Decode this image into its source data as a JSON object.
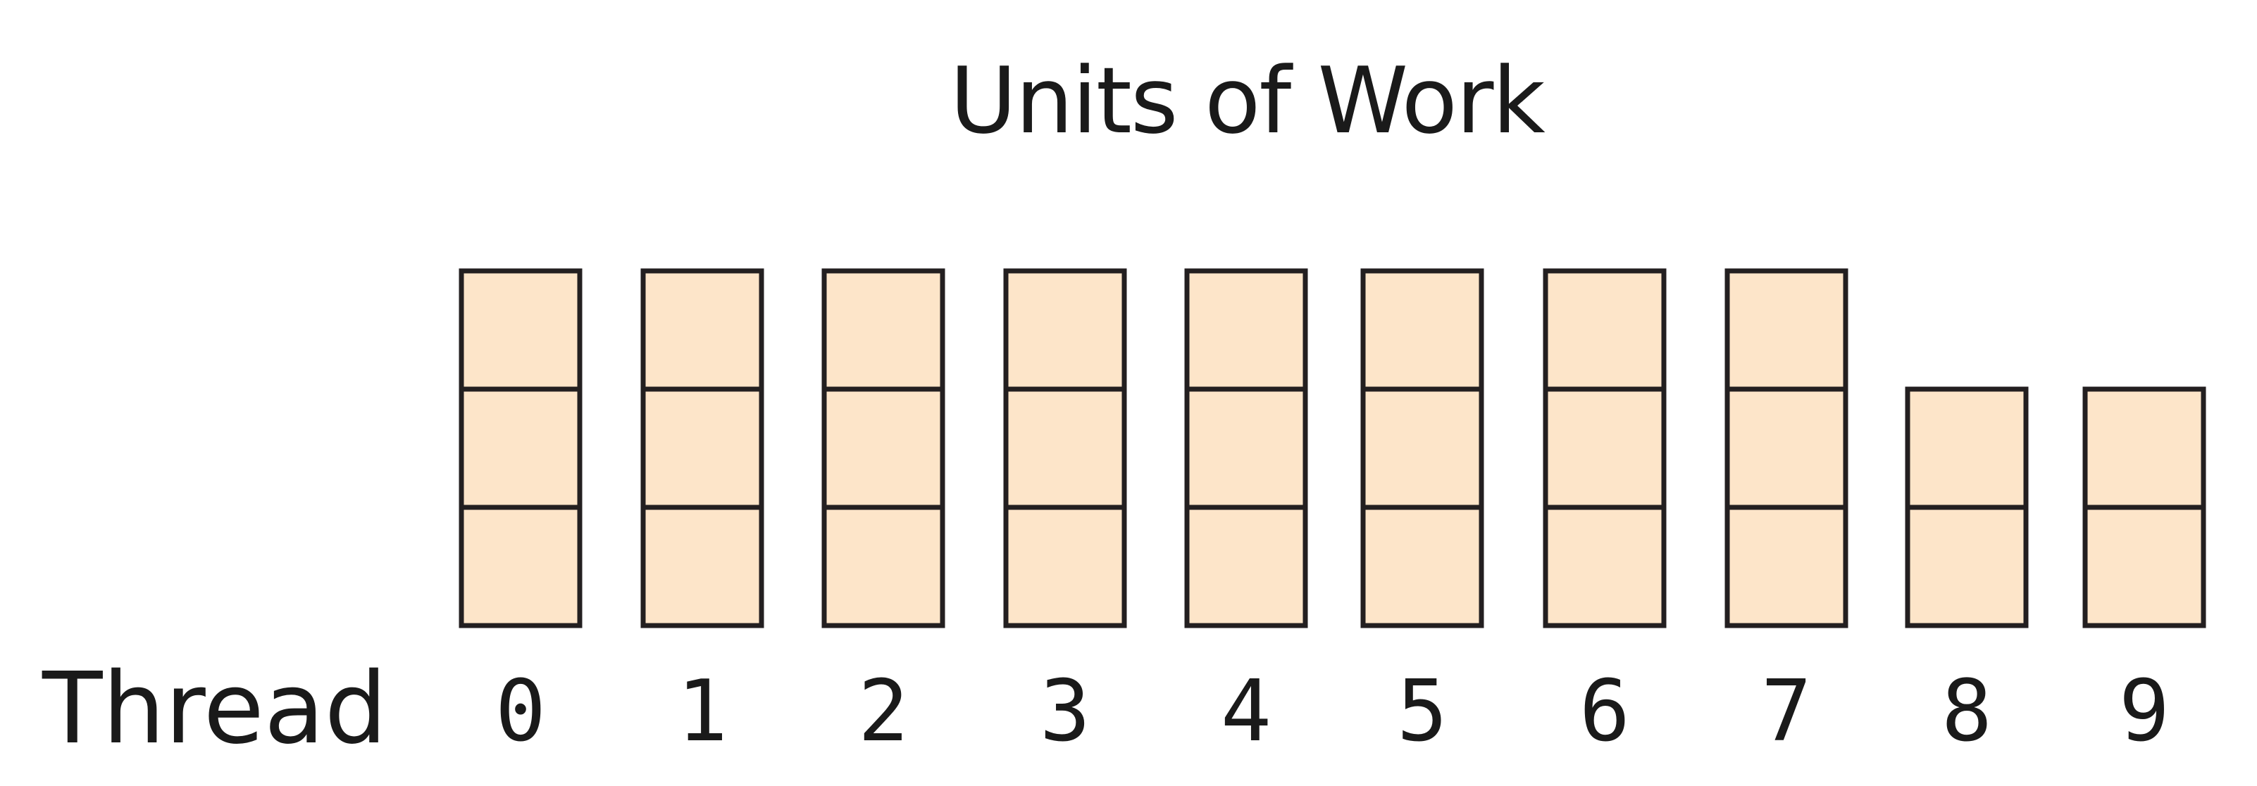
{
  "title": "Units of Work",
  "row_label": "Thread",
  "cell_fill": "#fde5c9",
  "cell_stroke": "#231f20",
  "threads": [
    {
      "label": "0",
      "units": 3
    },
    {
      "label": "1",
      "units": 3
    },
    {
      "label": "2",
      "units": 3
    },
    {
      "label": "3",
      "units": 3
    },
    {
      "label": "4",
      "units": 3
    },
    {
      "label": "5",
      "units": 3
    },
    {
      "label": "6",
      "units": 3
    },
    {
      "label": "7",
      "units": 3
    },
    {
      "label": "8",
      "units": 2
    },
    {
      "label": "9",
      "units": 2
    }
  ]
}
